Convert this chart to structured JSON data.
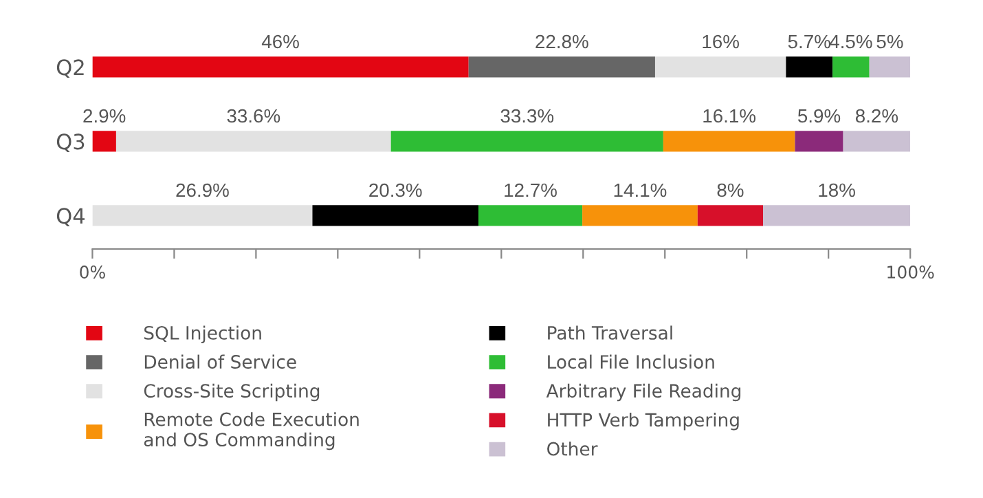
{
  "chart_data": {
    "type": "bar",
    "orientation": "horizontal",
    "stacked": true,
    "categories": [
      "Q2",
      "Q3",
      "Q4"
    ],
    "series": [
      {
        "name": "SQL Injection",
        "color": "#e30613",
        "values": [
          46,
          2.9,
          null
        ],
        "value_labels": [
          "46%",
          "2.9%",
          null
        ]
      },
      {
        "name": "Denial of Service",
        "color": "#666666",
        "values": [
          22.8,
          null,
          null
        ],
        "value_labels": [
          "22.8%",
          null,
          null
        ]
      },
      {
        "name": "Cross-Site Scripting",
        "color": "#e2e2e2",
        "values": [
          16,
          33.6,
          26.9
        ],
        "value_labels": [
          "16%",
          "33.6%",
          "26.9%"
        ]
      },
      {
        "name": "Path Traversal",
        "color": "#000000",
        "values": [
          5.7,
          null,
          20.3
        ],
        "value_labels": [
          "5.7%",
          null,
          "20.3%"
        ]
      },
      {
        "name": "Local File Inclusion",
        "color": "#2ebd35",
        "values": [
          4.5,
          33.3,
          12.7
        ],
        "value_labels": [
          "4.5%",
          "33.3%",
          "12.7%"
        ]
      },
      {
        "name": "Remote Code Execution\nand OS Commanding",
        "color": "#f7920a",
        "values": [
          null,
          16.1,
          14.1
        ],
        "value_labels": [
          null,
          "16.1%",
          "14.1%"
        ]
      },
      {
        "name": "Arbitrary File Reading",
        "color": "#8b2a7a",
        "values": [
          null,
          5.9,
          null
        ],
        "value_labels": [
          null,
          "5.9%",
          null
        ]
      },
      {
        "name": "HTTP Verb Tampering",
        "color": "#d7102a",
        "values": [
          null,
          null,
          8
        ],
        "value_labels": [
          null,
          null,
          "8%"
        ]
      },
      {
        "name": "Other",
        "color": "#cbc1d3",
        "values": [
          5,
          8.2,
          18
        ],
        "value_labels": [
          "5%",
          "8.2%",
          "18%"
        ]
      }
    ],
    "xlim": [
      0,
      100
    ],
    "xticks": [
      {
        "value": 0,
        "label": "0%"
      },
      {
        "value": 10,
        "label": null
      },
      {
        "value": 20,
        "label": null
      },
      {
        "value": 30,
        "label": null
      },
      {
        "value": 40,
        "label": null
      },
      {
        "value": 50,
        "label": null
      },
      {
        "value": 60,
        "label": null
      },
      {
        "value": 70,
        "label": null
      },
      {
        "value": 80,
        "label": null
      },
      {
        "value": 90,
        "label": null
      },
      {
        "value": 100,
        "label": "100%"
      }
    ],
    "grid": false,
    "legend": "bottom"
  }
}
